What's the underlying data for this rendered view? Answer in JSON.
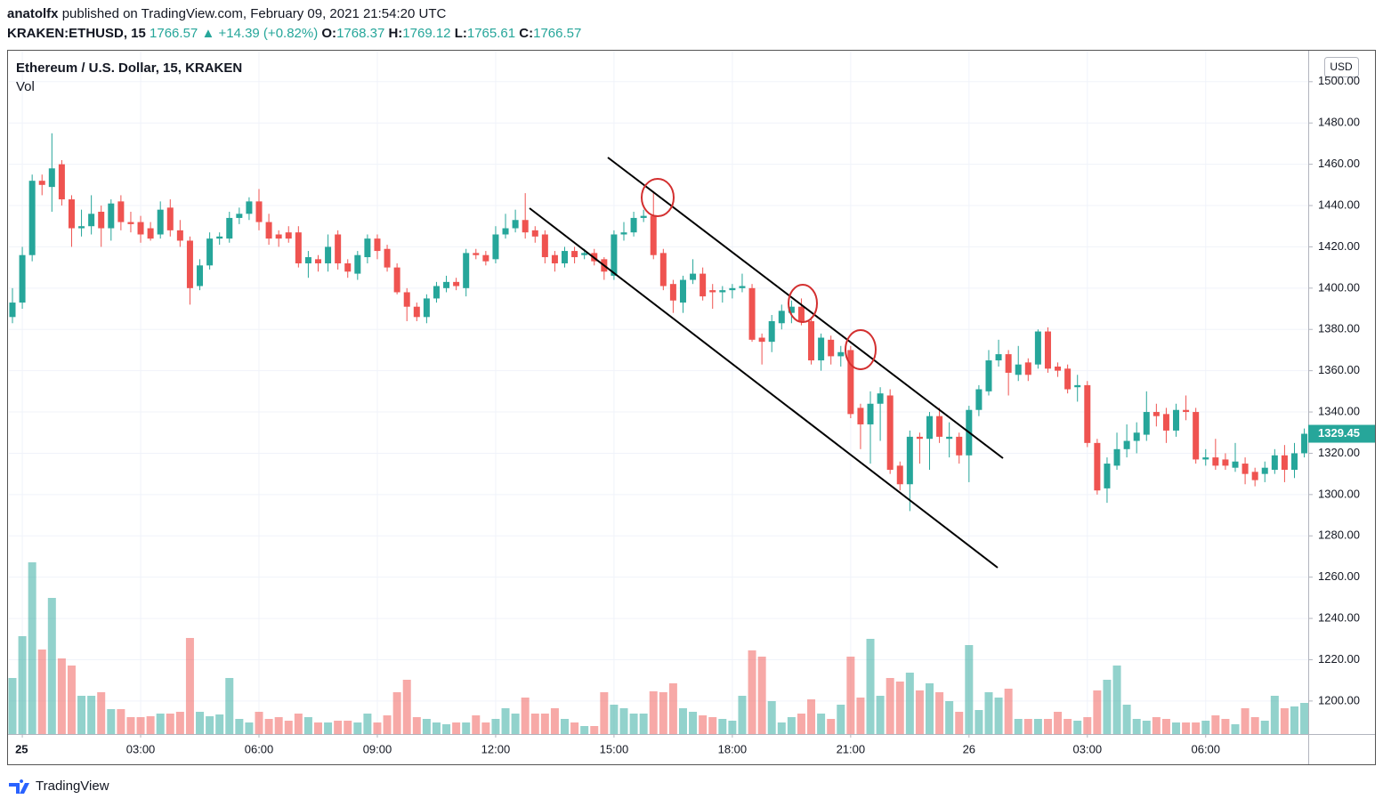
{
  "header": {
    "author": "anatolfx",
    "published": "published on TradingView.com, February 09, 2021 21:54:20 UTC",
    "symbol": "KRAKEN:ETHUSD, 15",
    "last": 1766.57,
    "arrow": "▲",
    "change": "+14.39 (+0.82%)",
    "ohlc": [
      {
        "label": "O:",
        "value": 1768.37
      },
      {
        "label": "H:",
        "value": 1769.12
      },
      {
        "label": "L:",
        "value": 1765.61
      },
      {
        "label": "C:",
        "value": 1766.57
      }
    ]
  },
  "footer": {
    "logo": "TradingView"
  },
  "chart_data": {
    "type": "candlestick",
    "title": "Ethereum / U.S. Dollar, 15, KRAKEN",
    "volume_label": "Vol",
    "currency": "USD",
    "up_color": "#26a69a",
    "down_color": "#ef5350",
    "volume_up_color": "#26a69a80",
    "volume_down_color": "#ef535080",
    "grid": true,
    "xlim": [
      -0.34,
      32.6
    ],
    "xticks": [
      {
        "value": 0,
        "label": "25"
      },
      {
        "value": 3,
        "label": "03:00"
      },
      {
        "value": 6,
        "label": "06:00"
      },
      {
        "value": 9,
        "label": "09:00"
      },
      {
        "value": 12,
        "label": "12:00"
      },
      {
        "value": 15,
        "label": "15:00"
      },
      {
        "value": 18,
        "label": "18:00"
      },
      {
        "value": 21,
        "label": "21:00"
      },
      {
        "value": 24,
        "label": "26"
      },
      {
        "value": 27,
        "label": "03:00"
      },
      {
        "value": 30,
        "label": "06:00"
      }
    ],
    "ylim": [
      1184,
      1515
    ],
    "yticks": [
      {
        "value": 1200,
        "label": "1200.00"
      },
      {
        "value": 1220,
        "label": "1220.00"
      },
      {
        "value": 1240,
        "label": "1240.00"
      },
      {
        "value": 1260,
        "label": "1260.00"
      },
      {
        "value": 1280,
        "label": "1280.00"
      },
      {
        "value": 1300,
        "label": "1300.00"
      },
      {
        "value": 1320,
        "label": "1320.00"
      },
      {
        "value": 1340,
        "label": "1340.00"
      },
      {
        "value": 1360,
        "label": "1360.00"
      },
      {
        "value": 1380,
        "label": "1380.00"
      },
      {
        "value": 1400,
        "label": "1400.00"
      },
      {
        "value": 1420,
        "label": "1420.00"
      },
      {
        "value": 1440,
        "label": "1440.00"
      },
      {
        "value": 1460,
        "label": "1460.00"
      },
      {
        "value": 1480,
        "label": "1480.00"
      },
      {
        "value": 1500,
        "label": "1500.00"
      }
    ],
    "x": [
      -0.25,
      0,
      0.25,
      0.5,
      0.75,
      1,
      1.25,
      1.5,
      1.75,
      2,
      2.25,
      2.5,
      2.75,
      3,
      3.25,
      3.5,
      3.75,
      4,
      4.25,
      4.5,
      4.75,
      5,
      5.25,
      5.5,
      5.75,
      6,
      6.25,
      6.5,
      6.75,
      7,
      7.25,
      7.5,
      7.75,
      8,
      8.25,
      8.5,
      8.75,
      9,
      9.25,
      9.5,
      9.75,
      10,
      10.25,
      10.5,
      10.75,
      11,
      11.25,
      11.5,
      11.75,
      12,
      12.25,
      12.5,
      12.75,
      13,
      13.25,
      13.5,
      13.75,
      14,
      14.25,
      14.5,
      14.75,
      15,
      15.25,
      15.5,
      15.75,
      16,
      16.25,
      16.5,
      16.75,
      17,
      17.25,
      17.5,
      17.75,
      18,
      18.25,
      18.5,
      18.75,
      19,
      19.25,
      19.5,
      19.75,
      20,
      20.25,
      20.5,
      20.75,
      21,
      21.25,
      21.5,
      21.75,
      22,
      22.25,
      22.5,
      22.75,
      23,
      23.25,
      23.5,
      23.75,
      24,
      24.25,
      24.5,
      24.75,
      25,
      25.25,
      25.5,
      25.75,
      26,
      26.25,
      26.5,
      26.75,
      27,
      27.25,
      27.5,
      27.75,
      28,
      28.25,
      28.5,
      28.75,
      29,
      29.25,
      29.5,
      29.75,
      30,
      30.25,
      30.5,
      30.75,
      31,
      31.25,
      31.5,
      31.75,
      32,
      32.25,
      32.5
    ],
    "open": [
      1386,
      1393,
      1416,
      1452,
      1449,
      1460,
      1443,
      1429,
      1430,
      1437,
      1429,
      1442,
      1432,
      1432,
      1429,
      1426,
      1439,
      1428,
      1423,
      1401,
      1411,
      1424,
      1424,
      1434,
      1436,
      1442,
      1432,
      1426,
      1427,
      1427,
      1412,
      1414,
      1412,
      1426,
      1412,
      1407,
      1415,
      1424,
      1419,
      1410,
      1398,
      1391,
      1386,
      1395,
      1400,
      1403,
      1400,
      1417,
      1416,
      1414,
      1426,
      1429,
      1433,
      1428,
      1426,
      1416,
      1412,
      1418,
      1416,
      1417,
      1414,
      1406,
      1426,
      1427,
      1434,
      1435,
      1417,
      1402,
      1393,
      1404,
      1407,
      1399,
      1398,
      1399,
      1400,
      1400,
      1376,
      1374,
      1383,
      1388,
      1391,
      1384,
      1365,
      1375,
      1367,
      1370,
      1342,
      1334,
      1344,
      1348,
      1314,
      1305,
      1328,
      1327,
      1338,
      1327,
      1328,
      1319,
      1341,
      1350,
      1365,
      1368,
      1358,
      1364,
      1363,
      1379,
      1362,
      1361,
      1352,
      1353,
      1325,
      1303,
      1314,
      1322,
      1326,
      1329,
      1340,
      1339,
      1331,
      1341,
      1340,
      1317,
      1318,
      1317,
      1313,
      1315,
      1311,
      1310,
      1312,
      1319,
      1312,
      1320
    ],
    "high": [
      1400,
      1420,
      1455,
      1455,
      1475,
      1462,
      1445,
      1438,
      1445,
      1440,
      1443,
      1445,
      1437,
      1435,
      1432,
      1442,
      1443,
      1433,
      1425,
      1414,
      1427,
      1427,
      1437,
      1439,
      1444,
      1448,
      1436,
      1428,
      1430,
      1430,
      1418,
      1416,
      1426,
      1428,
      1414,
      1418,
      1426,
      1426,
      1421,
      1412,
      1400,
      1393,
      1397,
      1403,
      1406,
      1405,
      1419,
      1419,
      1418,
      1430,
      1436,
      1438,
      1446,
      1430,
      1428,
      1418,
      1420,
      1420,
      1419,
      1419,
      1415,
      1428,
      1432,
      1437,
      1438,
      1447,
      1419,
      1404,
      1406,
      1414,
      1410,
      1402,
      1401,
      1402,
      1407,
      1402,
      1378,
      1387,
      1392,
      1394,
      1395,
      1386,
      1378,
      1377,
      1372,
      1372,
      1344,
      1350,
      1352,
      1351,
      1316,
      1331,
      1330,
      1340,
      1342,
      1335,
      1330,
      1343,
      1353,
      1370,
      1375,
      1370,
      1372,
      1366,
      1380,
      1381,
      1364,
      1363,
      1358,
      1355,
      1327,
      1318,
      1330,
      1334,
      1335,
      1350,
      1344,
      1342,
      1344,
      1348,
      1342,
      1322,
      1327,
      1320,
      1325,
      1318,
      1313,
      1316,
      1322,
      1324,
      1325,
      1332
    ],
    "low": [
      1383,
      1390,
      1413,
      1445,
      1437,
      1440,
      1420,
      1425,
      1426,
      1420,
      1423,
      1428,
      1427,
      1422,
      1423,
      1424,
      1425,
      1420,
      1392,
      1399,
      1409,
      1421,
      1422,
      1431,
      1433,
      1428,
      1421,
      1420,
      1422,
      1410,
      1405,
      1408,
      1408,
      1409,
      1405,
      1404,
      1412,
      1414,
      1408,
      1397,
      1384,
      1384,
      1383,
      1393,
      1398,
      1399,
      1396,
      1414,
      1411,
      1412,
      1424,
      1427,
      1424,
      1422,
      1412,
      1408,
      1410,
      1412,
      1414,
      1411,
      1404,
      1404,
      1423,
      1425,
      1432,
      1414,
      1399,
      1388,
      1388,
      1402,
      1394,
      1390,
      1393,
      1395,
      1398,
      1374,
      1363,
      1369,
      1380,
      1383,
      1382,
      1363,
      1360,
      1363,
      1362,
      1337,
      1322,
      1315,
      1326,
      1310,
      1302,
      1292,
      1315,
      1312,
      1325,
      1318,
      1315,
      1306,
      1338,
      1348,
      1362,
      1348,
      1355,
      1355,
      1361,
      1359,
      1357,
      1349,
      1345,
      1323,
      1300,
      1296,
      1312,
      1318,
      1320,
      1326,
      1333,
      1325,
      1328,
      1336,
      1315,
      1314,
      1312,
      1312,
      1311,
      1305,
      1304,
      1306,
      1310,
      1306,
      1308,
      1318
    ],
    "close": [
      1393,
      1416,
      1452,
      1450,
      1458,
      1443,
      1429,
      1430,
      1436,
      1429,
      1441,
      1432,
      1431,
      1426,
      1424,
      1438,
      1428,
      1423,
      1400,
      1411,
      1424,
      1425,
      1434,
      1436,
      1442,
      1432,
      1424,
      1424,
      1424,
      1412,
      1415,
      1412,
      1420,
      1412,
      1408,
      1416,
      1424,
      1418,
      1410,
      1398,
      1391,
      1386,
      1395,
      1401,
      1403,
      1401,
      1417,
      1416,
      1413,
      1426,
      1429,
      1433,
      1427,
      1425,
      1415,
      1412,
      1418,
      1415,
      1417,
      1413,
      1408,
      1426,
      1427,
      1434,
      1435,
      1416,
      1401,
      1394,
      1404,
      1407,
      1396,
      1398,
      1399,
      1400,
      1401,
      1375,
      1374,
      1384,
      1389,
      1391,
      1384,
      1365,
      1376,
      1367,
      1369,
      1339,
      1334,
      1344,
      1349,
      1312,
      1305,
      1328,
      1327,
      1338,
      1328,
      1328,
      1319,
      1341,
      1351,
      1365,
      1368,
      1359,
      1363,
      1358,
      1379,
      1361,
      1360,
      1351,
      1353,
      1325,
      1302,
      1315,
      1322,
      1326,
      1330,
      1340,
      1338,
      1331,
      1341,
      1340,
      1317,
      1318,
      1314,
      1314,
      1316,
      1310,
      1307,
      1313,
      1319,
      1312,
      1320,
      1329.45
    ],
    "volume": [
      63,
      110,
      193,
      95,
      153,
      85,
      77,
      43,
      43,
      47,
      28,
      28,
      19,
      19,
      20,
      23,
      23,
      25,
      108,
      25,
      20,
      22,
      63,
      17,
      13,
      25,
      17,
      19,
      15,
      23,
      19,
      13,
      13,
      15,
      15,
      13,
      23,
      13,
      21,
      47,
      61,
      19,
      17,
      13,
      11,
      13,
      13,
      21,
      13,
      17,
      29,
      23,
      41,
      23,
      23,
      29,
      17,
      13,
      9,
      9,
      47,
      33,
      29,
      23,
      23,
      48,
      47,
      57,
      29,
      25,
      21,
      19,
      17,
      15,
      43,
      94,
      87,
      37,
      13,
      19,
      23,
      39,
      23,
      17,
      33,
      87,
      41,
      107,
      43,
      63,
      59,
      69,
      49,
      57,
      47,
      37,
      25,
      100,
      27,
      47,
      41,
      51,
      17,
      17,
      17,
      17,
      25,
      17,
      15,
      19,
      49,
      61,
      77,
      33,
      17,
      15,
      19,
      17,
      13,
      13,
      13,
      15,
      21,
      17,
      11,
      29,
      19,
      15,
      43,
      29,
      31,
      35
    ]
  }
}
